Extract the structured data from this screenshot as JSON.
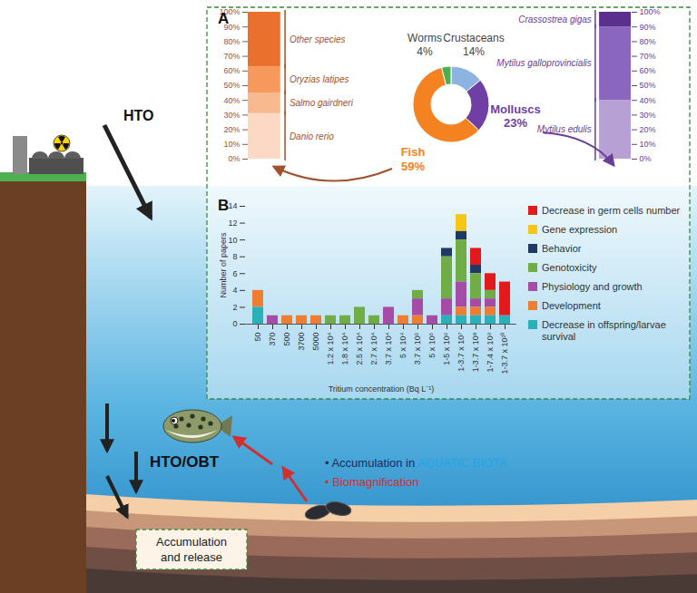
{
  "diagram": {
    "panel_labels": [
      "A",
      "B"
    ],
    "hto": "HTO",
    "hto_obt": "HTO/OBT",
    "accumulation": {
      "bullet": "•",
      "text": "Accumulation in",
      "highlight": "AQUATIC BIOTA"
    },
    "biomagnification": {
      "bullet": "•",
      "text": "Biomagnification"
    },
    "sediment_box": [
      "Accumulation",
      "and release"
    ]
  },
  "chart_data": [
    {
      "type": "bar",
      "stacked": true,
      "categories": [
        "Danio rerio",
        "Salmo gairdneri",
        "Oryzias latipes",
        "Other species"
      ],
      "values": [
        31,
        14,
        18,
        37
      ],
      "colors": [
        "#fcd9c4",
        "#f9b98f",
        "#f7985c",
        "#e9702d"
      ],
      "ylim": [
        0,
        100
      ],
      "yticks": [
        {
          "value": 0,
          "label": "0%"
        },
        {
          "value": 10,
          "label": "10%"
        },
        {
          "value": 20,
          "label": "20%"
        },
        {
          "value": 30,
          "label": "30%"
        },
        {
          "value": 40,
          "label": "40%"
        },
        {
          "value": 50,
          "label": "50%"
        },
        {
          "value": 60,
          "label": "60%"
        },
        {
          "value": 70,
          "label": "70%"
        },
        {
          "value": 80,
          "label": "80%"
        },
        {
          "value": 90,
          "label": "90%"
        },
        {
          "value": 100,
          "label": "100%"
        }
      ]
    },
    {
      "type": "pie",
      "categories": [
        "Crustaceans",
        "Molluscs",
        "Fish",
        "Worms"
      ],
      "values": [
        14,
        23,
        59,
        4
      ],
      "value_labels": [
        "14%",
        "23%",
        "59%",
        "4%"
      ],
      "colors": [
        "#8db3e2",
        "#6f3fa5",
        "#f58220",
        "#4caf50"
      ]
    },
    {
      "type": "bar",
      "stacked": true,
      "categories": [
        "Mytilus edulis",
        "Mytilus galloprovincialis",
        "Crassostrea gigas"
      ],
      "values": [
        40,
        50,
        10
      ],
      "colors": [
        "#b6a0d4",
        "#8b66bf",
        "#5b2f8c"
      ],
      "ylim": [
        0,
        100
      ],
      "yticks": [
        {
          "value": 0,
          "label": "0%"
        },
        {
          "value": 10,
          "label": "10%"
        },
        {
          "value": 20,
          "label": "20%"
        },
        {
          "value": 30,
          "label": "30%"
        },
        {
          "value": 40,
          "label": "40%"
        },
        {
          "value": 50,
          "label": "50%"
        },
        {
          "value": 60,
          "label": "60%"
        },
        {
          "value": 70,
          "label": "70%"
        },
        {
          "value": 80,
          "label": "80%"
        },
        {
          "value": 90,
          "label": "90%"
        },
        {
          "value": 100,
          "label": "100%"
        }
      ]
    },
    {
      "type": "bar",
      "stacked": true,
      "legend": "right",
      "xlabel": "Tritium concentration (Bq L⁻¹)",
      "ylabel": "Number of papers",
      "categories": [
        "50",
        "370",
        "500",
        "3700",
        "5000",
        "1.2 x 10⁴",
        "1.8 x 10⁴",
        "2.5 x 10⁴",
        "2.7 x 10⁴",
        "3.7 x 10⁴",
        "5 x 10⁴",
        "3.7 x 10⁵",
        "5 x 10⁵",
        "1-5 x 10⁶",
        "1-3.7 x 10⁷",
        "1-3.7 x 10⁸",
        "1-7.4 x 10⁹",
        "1-3.7 x 10¹⁰"
      ],
      "series": [
        {
          "name": "Decrease in germ cells number",
          "color": "#e31a1c",
          "values": [
            0,
            0,
            0,
            0,
            0,
            0,
            0,
            0,
            0,
            0,
            0,
            0,
            0,
            0,
            0,
            2,
            2,
            4
          ]
        },
        {
          "name": "Gene expression",
          "color": "#f5c518",
          "values": [
            0,
            0,
            0,
            0,
            0,
            0,
            0,
            0,
            0,
            0,
            0,
            0,
            0,
            0,
            2,
            0,
            0,
            0
          ]
        },
        {
          "name": "Behavior",
          "color": "#1f3864",
          "values": [
            0,
            0,
            0,
            0,
            0,
            0,
            0,
            0,
            0,
            0,
            0,
            0,
            0,
            1,
            1,
            1,
            0,
            0
          ]
        },
        {
          "name": "Genotoxicity",
          "color": "#70ad47",
          "values": [
            0,
            0,
            0,
            0,
            0,
            1,
            1,
            2,
            1,
            0,
            0,
            1,
            0,
            5,
            5,
            3,
            1,
            0
          ]
        },
        {
          "name": "Physiology and growth",
          "color": "#a64ca6",
          "values": [
            0,
            1,
            0,
            0,
            0,
            0,
            0,
            0,
            0,
            2,
            0,
            2,
            1,
            2,
            3,
            1,
            1,
            0
          ]
        },
        {
          "name": "Development",
          "color": "#ed7d31",
          "values": [
            2,
            0,
            1,
            1,
            1,
            0,
            0,
            0,
            0,
            0,
            1,
            1,
            0,
            0,
            1,
            1,
            1,
            0
          ]
        },
        {
          "name": "Decrease in offspring/larvae survival",
          "color": "#2ab0b8",
          "values": [
            2,
            0,
            0,
            0,
            0,
            0,
            0,
            0,
            0,
            0,
            0,
            0,
            0,
            1,
            1,
            1,
            1,
            1
          ]
        }
      ],
      "ylim": [
        0,
        14
      ],
      "yticks": [
        0,
        2,
        4,
        6,
        8,
        10,
        12,
        14
      ]
    }
  ]
}
